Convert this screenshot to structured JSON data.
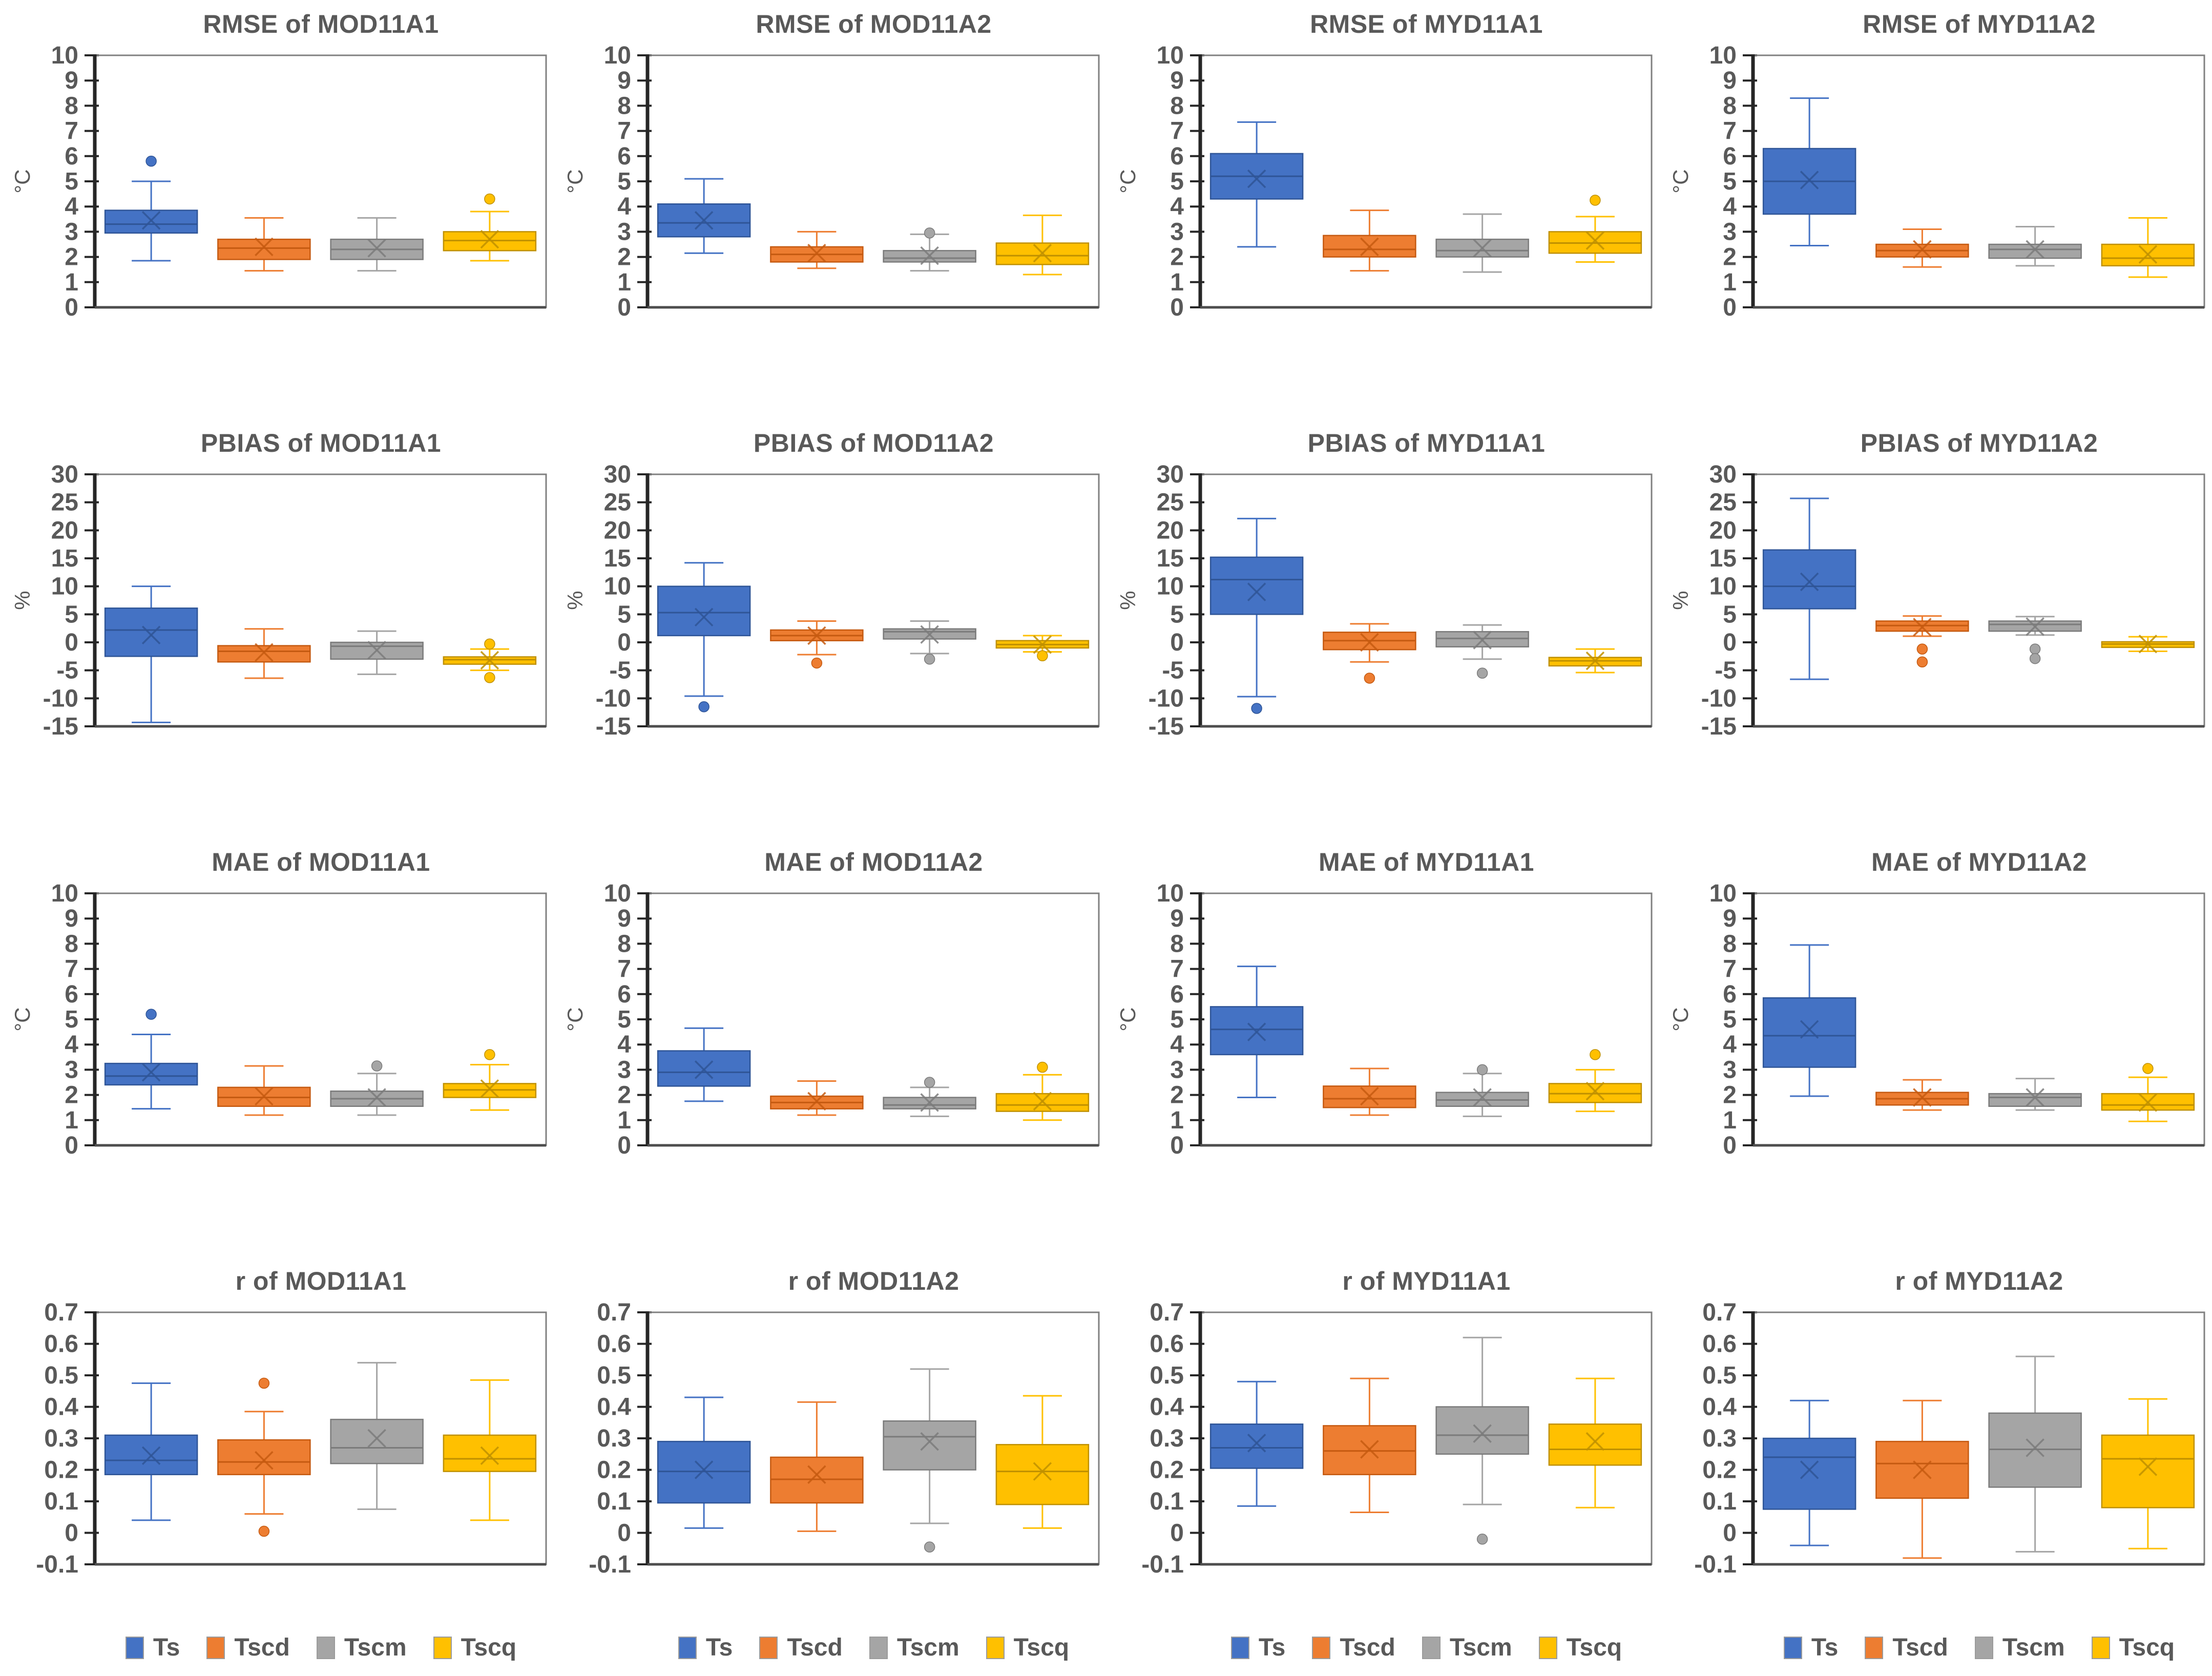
{
  "figure": {
    "rows": [
      "RMSE",
      "PBIAS",
      "MAE",
      "r"
    ],
    "columns": [
      "MOD11A1",
      "MOD11A2",
      "MYD11A1",
      "MYD11A2"
    ]
  },
  "legend": {
    "items": [
      {
        "label": "Ts",
        "color": "#4472C4"
      },
      {
        "label": "Tscd",
        "color": "#ED7D31"
      },
      {
        "label": "Tscm",
        "color": "#A5A5A5"
      },
      {
        "label": "Tscq",
        "color": "#FFC000"
      }
    ]
  },
  "palette": {
    "Ts": {
      "fill": "#4472C4",
      "line": "#2F5597"
    },
    "Tscd": {
      "fill": "#ED7D31",
      "line": "#C55A11"
    },
    "Tscm": {
      "fill": "#A5A5A5",
      "line": "#7B7B7B"
    },
    "Tscq": {
      "fill": "#FFC000",
      "line": "#BF9000"
    },
    "title_color": "#595959",
    "tick_color": "#595959",
    "axis_color": "#262626",
    "frame_color": "#808080"
  },
  "chart_data": [
    {
      "type": "box",
      "title": "RMSE of MOD11A1",
      "ylabel": "°C",
      "ylim": [
        0,
        10
      ],
      "tick_step": 1,
      "grid": false,
      "boxes": [
        {
          "series": "Ts",
          "whisker_low": 1.85,
          "q1": 2.95,
          "median": 3.3,
          "q3": 3.85,
          "whisker_high": 5.0,
          "mean": 3.45,
          "outliers": [
            5.8
          ]
        },
        {
          "series": "Tscd",
          "whisker_low": 1.45,
          "q1": 1.9,
          "median": 2.35,
          "q3": 2.7,
          "whisker_high": 3.55,
          "mean": 2.4,
          "outliers": []
        },
        {
          "series": "Tscm",
          "whisker_low": 1.45,
          "q1": 1.9,
          "median": 2.3,
          "q3": 2.7,
          "whisker_high": 3.55,
          "mean": 2.35,
          "outliers": []
        },
        {
          "series": "Tscq",
          "whisker_low": 1.85,
          "q1": 2.25,
          "median": 2.65,
          "q3": 3.0,
          "whisker_high": 3.8,
          "mean": 2.7,
          "outliers": [
            4.3
          ]
        }
      ]
    },
    {
      "type": "box",
      "title": "RMSE of MOD11A2",
      "ylabel": "°C",
      "ylim": [
        0,
        10
      ],
      "tick_step": 1,
      "grid": false,
      "boxes": [
        {
          "series": "Ts",
          "whisker_low": 2.15,
          "q1": 2.8,
          "median": 3.35,
          "q3": 4.1,
          "whisker_high": 5.1,
          "mean": 3.45,
          "outliers": []
        },
        {
          "series": "Tscd",
          "whisker_low": 1.55,
          "q1": 1.8,
          "median": 2.1,
          "q3": 2.4,
          "whisker_high": 3.0,
          "mean": 2.15,
          "outliers": []
        },
        {
          "series": "Tscm",
          "whisker_low": 1.45,
          "q1": 1.8,
          "median": 1.95,
          "q3": 2.25,
          "whisker_high": 2.9,
          "mean": 2.05,
          "outliers": [
            2.95
          ]
        },
        {
          "series": "Tscq",
          "whisker_low": 1.3,
          "q1": 1.7,
          "median": 2.05,
          "q3": 2.55,
          "whisker_high": 3.65,
          "mean": 2.15,
          "outliers": []
        }
      ]
    },
    {
      "type": "box",
      "title": "RMSE of MYD11A1",
      "ylabel": "°C",
      "ylim": [
        0,
        10
      ],
      "tick_step": 1,
      "grid": false,
      "boxes": [
        {
          "series": "Ts",
          "whisker_low": 2.4,
          "q1": 4.3,
          "median": 5.2,
          "q3": 6.1,
          "whisker_high": 7.35,
          "mean": 5.1,
          "outliers": []
        },
        {
          "series": "Tscd",
          "whisker_low": 1.45,
          "q1": 2.0,
          "median": 2.3,
          "q3": 2.85,
          "whisker_high": 3.85,
          "mean": 2.4,
          "outliers": []
        },
        {
          "series": "Tscm",
          "whisker_low": 1.4,
          "q1": 2.0,
          "median": 2.25,
          "q3": 2.7,
          "whisker_high": 3.7,
          "mean": 2.35,
          "outliers": []
        },
        {
          "series": "Tscq",
          "whisker_low": 1.8,
          "q1": 2.15,
          "median": 2.55,
          "q3": 3.0,
          "whisker_high": 3.6,
          "mean": 2.65,
          "outliers": [
            4.25
          ]
        }
      ]
    },
    {
      "type": "box",
      "title": "RMSE of MYD11A2",
      "ylabel": "°C",
      "ylim": [
        0,
        10
      ],
      "tick_step": 1,
      "grid": false,
      "boxes": [
        {
          "series": "Ts",
          "whisker_low": 2.45,
          "q1": 3.7,
          "median": 5.0,
          "q3": 6.3,
          "whisker_high": 8.3,
          "mean": 5.05,
          "outliers": []
        },
        {
          "series": "Tscd",
          "whisker_low": 1.6,
          "q1": 2.0,
          "median": 2.25,
          "q3": 2.5,
          "whisker_high": 3.1,
          "mean": 2.3,
          "outliers": []
        },
        {
          "series": "Tscm",
          "whisker_low": 1.65,
          "q1": 1.95,
          "median": 2.3,
          "q3": 2.5,
          "whisker_high": 3.2,
          "mean": 2.3,
          "outliers": []
        },
        {
          "series": "Tscq",
          "whisker_low": 1.2,
          "q1": 1.65,
          "median": 1.95,
          "q3": 2.5,
          "whisker_high": 3.55,
          "mean": 2.1,
          "outliers": []
        }
      ]
    },
    {
      "type": "box",
      "title": "PBIAS of MOD11A1",
      "ylabel": "%",
      "ylim": [
        -15,
        30
      ],
      "tick_step": 5,
      "grid": false,
      "boxes": [
        {
          "series": "Ts",
          "whisker_low": -14.3,
          "q1": -2.5,
          "median": 2.2,
          "q3": 6.1,
          "whisker_high": 10.0,
          "mean": 1.3,
          "outliers": []
        },
        {
          "series": "Tscd",
          "whisker_low": -6.4,
          "q1": -3.5,
          "median": -1.6,
          "q3": -0.6,
          "whisker_high": 2.4,
          "mean": -1.8,
          "outliers": []
        },
        {
          "series": "Tscm",
          "whisker_low": -5.7,
          "q1": -3.0,
          "median": -0.7,
          "q3": 0.0,
          "whisker_high": 2.0,
          "mean": -1.4,
          "outliers": []
        },
        {
          "series": "Tscq",
          "whisker_low": -5.0,
          "q1": -3.9,
          "median": -3.1,
          "q3": -2.6,
          "whisker_high": -1.2,
          "mean": -3.2,
          "outliers": [
            -0.3,
            -6.3
          ]
        }
      ]
    },
    {
      "type": "box",
      "title": "PBIAS of MOD11A2",
      "ylabel": "%",
      "ylim": [
        -15,
        30
      ],
      "tick_step": 5,
      "grid": false,
      "boxes": [
        {
          "series": "Ts",
          "whisker_low": -9.6,
          "q1": 1.2,
          "median": 5.3,
          "q3": 10.0,
          "whisker_high": 14.2,
          "mean": 4.5,
          "outliers": [
            -11.5
          ]
        },
        {
          "series": "Tscd",
          "whisker_low": -2.2,
          "q1": 0.3,
          "median": 1.2,
          "q3": 2.2,
          "whisker_high": 3.8,
          "mean": 1.2,
          "outliers": [
            -3.7
          ]
        },
        {
          "series": "Tscm",
          "whisker_low": -2.0,
          "q1": 0.6,
          "median": 1.9,
          "q3": 2.4,
          "whisker_high": 3.8,
          "mean": 1.4,
          "outliers": [
            -3.0
          ]
        },
        {
          "series": "Tscq",
          "whisker_low": -1.7,
          "q1": -1.0,
          "median": -0.4,
          "q3": 0.3,
          "whisker_high": 1.2,
          "mean": -0.4,
          "outliers": [
            -2.4
          ]
        }
      ]
    },
    {
      "type": "box",
      "title": "PBIAS of MYD11A1",
      "ylabel": "%",
      "ylim": [
        -15,
        30
      ],
      "tick_step": 5,
      "grid": false,
      "boxes": [
        {
          "series": "Ts",
          "whisker_low": -9.7,
          "q1": 5.0,
          "median": 11.2,
          "q3": 15.2,
          "whisker_high": 22.1,
          "mean": 9.0,
          "outliers": [
            -11.8
          ]
        },
        {
          "series": "Tscd",
          "whisker_low": -3.5,
          "q1": -1.3,
          "median": 0.3,
          "q3": 1.8,
          "whisker_high": 3.3,
          "mean": 0.0,
          "outliers": [
            -6.4
          ]
        },
        {
          "series": "Tscm",
          "whisker_low": -3.0,
          "q1": -0.8,
          "median": 0.7,
          "q3": 1.9,
          "whisker_high": 3.1,
          "mean": 0.4,
          "outliers": [
            -5.5
          ]
        },
        {
          "series": "Tscq",
          "whisker_low": -5.4,
          "q1": -4.2,
          "median": -3.3,
          "q3": -2.7,
          "whisker_high": -1.2,
          "mean": -3.3,
          "outliers": []
        }
      ]
    },
    {
      "type": "box",
      "title": "PBIAS of MYD11A2",
      "ylabel": "%",
      "ylim": [
        -15,
        30
      ],
      "tick_step": 5,
      "grid": false,
      "boxes": [
        {
          "series": "Ts",
          "whisker_low": -6.6,
          "q1": 6.0,
          "median": 10.0,
          "q3": 16.5,
          "whisker_high": 25.7,
          "mean": 10.8,
          "outliers": []
        },
        {
          "series": "Tscd",
          "whisker_low": 1.1,
          "q1": 2.0,
          "median": 3.0,
          "q3": 3.8,
          "whisker_high": 4.7,
          "mean": 2.7,
          "outliers": [
            -1.2,
            -3.5
          ]
        },
        {
          "series": "Tscm",
          "whisker_low": 1.3,
          "q1": 2.0,
          "median": 3.2,
          "q3": 3.8,
          "whisker_high": 4.6,
          "mean": 2.8,
          "outliers": [
            -1.2,
            -2.9
          ]
        },
        {
          "series": "Tscq",
          "whisker_low": -1.6,
          "q1": -0.9,
          "median": -0.3,
          "q3": 0.1,
          "whisker_high": 1.0,
          "mean": -0.3,
          "outliers": []
        }
      ]
    },
    {
      "type": "box",
      "title": "MAE of MOD11A1",
      "ylabel": "°C",
      "ylim": [
        0,
        10
      ],
      "tick_step": 1,
      "grid": false,
      "boxes": [
        {
          "series": "Ts",
          "whisker_low": 1.45,
          "q1": 2.4,
          "median": 2.75,
          "q3": 3.25,
          "whisker_high": 4.4,
          "mean": 2.9,
          "outliers": [
            5.2
          ]
        },
        {
          "series": "Tscd",
          "whisker_low": 1.2,
          "q1": 1.55,
          "median": 1.9,
          "q3": 2.3,
          "whisker_high": 3.15,
          "mean": 1.95,
          "outliers": []
        },
        {
          "series": "Tscm",
          "whisker_low": 1.2,
          "q1": 1.55,
          "median": 1.85,
          "q3": 2.15,
          "whisker_high": 2.85,
          "mean": 1.9,
          "outliers": [
            3.15
          ]
        },
        {
          "series": "Tscq",
          "whisker_low": 1.4,
          "q1": 1.9,
          "median": 2.2,
          "q3": 2.45,
          "whisker_high": 3.2,
          "mean": 2.25,
          "outliers": [
            3.6
          ]
        }
      ]
    },
    {
      "type": "box",
      "title": "MAE of MOD11A2",
      "ylabel": "°C",
      "ylim": [
        0,
        10
      ],
      "tick_step": 1,
      "grid": false,
      "boxes": [
        {
          "series": "Ts",
          "whisker_low": 1.75,
          "q1": 2.35,
          "median": 2.9,
          "q3": 3.75,
          "whisker_high": 4.65,
          "mean": 3.0,
          "outliers": []
        },
        {
          "series": "Tscd",
          "whisker_low": 1.2,
          "q1": 1.45,
          "median": 1.7,
          "q3": 1.95,
          "whisker_high": 2.55,
          "mean": 1.75,
          "outliers": []
        },
        {
          "series": "Tscm",
          "whisker_low": 1.15,
          "q1": 1.45,
          "median": 1.6,
          "q3": 1.9,
          "whisker_high": 2.3,
          "mean": 1.7,
          "outliers": [
            2.5
          ]
        },
        {
          "series": "Tscq",
          "whisker_low": 1.0,
          "q1": 1.35,
          "median": 1.6,
          "q3": 2.05,
          "whisker_high": 2.8,
          "mean": 1.75,
          "outliers": [
            3.1
          ]
        }
      ]
    },
    {
      "type": "box",
      "title": "MAE of MYD11A1",
      "ylabel": "°C",
      "ylim": [
        0,
        10
      ],
      "tick_step": 1,
      "grid": false,
      "boxes": [
        {
          "series": "Ts",
          "whisker_low": 1.9,
          "q1": 3.6,
          "median": 4.6,
          "q3": 5.5,
          "whisker_high": 7.1,
          "mean": 4.5,
          "outliers": []
        },
        {
          "series": "Tscd",
          "whisker_low": 1.2,
          "q1": 1.5,
          "median": 1.85,
          "q3": 2.35,
          "whisker_high": 3.05,
          "mean": 1.95,
          "outliers": []
        },
        {
          "series": "Tscm",
          "whisker_low": 1.15,
          "q1": 1.55,
          "median": 1.8,
          "q3": 2.1,
          "whisker_high": 2.85,
          "mean": 1.9,
          "outliers": [
            3.0
          ]
        },
        {
          "series": "Tscq",
          "whisker_low": 1.35,
          "q1": 1.7,
          "median": 2.05,
          "q3": 2.45,
          "whisker_high": 3.0,
          "mean": 2.15,
          "outliers": [
            3.6
          ]
        }
      ]
    },
    {
      "type": "box",
      "title": "MAE of MYD11A2",
      "ylabel": "°C",
      "ylim": [
        0,
        10
      ],
      "tick_step": 1,
      "grid": false,
      "boxes": [
        {
          "series": "Ts",
          "whisker_low": 1.95,
          "q1": 3.1,
          "median": 4.35,
          "q3": 5.85,
          "whisker_high": 7.95,
          "mean": 4.6,
          "outliers": []
        },
        {
          "series": "Tscd",
          "whisker_low": 1.4,
          "q1": 1.6,
          "median": 1.85,
          "q3": 2.1,
          "whisker_high": 2.6,
          "mean": 1.9,
          "outliers": []
        },
        {
          "series": "Tscm",
          "whisker_low": 1.4,
          "q1": 1.55,
          "median": 1.9,
          "q3": 2.05,
          "whisker_high": 2.65,
          "mean": 1.9,
          "outliers": []
        },
        {
          "series": "Tscq",
          "whisker_low": 0.95,
          "q1": 1.4,
          "median": 1.6,
          "q3": 2.05,
          "whisker_high": 2.7,
          "mean": 1.7,
          "outliers": [
            3.05
          ]
        }
      ]
    },
    {
      "type": "box",
      "title": "r of MOD11A1",
      "ylabel": "",
      "ylim": [
        -0.1,
        0.7
      ],
      "tick_step": 0.1,
      "grid": false,
      "boxes": [
        {
          "series": "Ts",
          "whisker_low": 0.04,
          "q1": 0.185,
          "median": 0.23,
          "q3": 0.31,
          "whisker_high": 0.475,
          "mean": 0.245,
          "outliers": []
        },
        {
          "series": "Tscd",
          "whisker_low": 0.06,
          "q1": 0.185,
          "median": 0.225,
          "q3": 0.295,
          "whisker_high": 0.385,
          "mean": 0.23,
          "outliers": [
            0.475,
            0.005
          ]
        },
        {
          "series": "Tscm",
          "whisker_low": 0.075,
          "q1": 0.22,
          "median": 0.27,
          "q3": 0.36,
          "whisker_high": 0.54,
          "mean": 0.3,
          "outliers": []
        },
        {
          "series": "Tscq",
          "whisker_low": 0.04,
          "q1": 0.195,
          "median": 0.235,
          "q3": 0.31,
          "whisker_high": 0.485,
          "mean": 0.245,
          "outliers": []
        }
      ]
    },
    {
      "type": "box",
      "title": "r of MOD11A2",
      "ylabel": "",
      "ylim": [
        -0.1,
        0.7
      ],
      "tick_step": 0.1,
      "grid": false,
      "boxes": [
        {
          "series": "Ts",
          "whisker_low": 0.015,
          "q1": 0.095,
          "median": 0.195,
          "q3": 0.29,
          "whisker_high": 0.43,
          "mean": 0.2,
          "outliers": []
        },
        {
          "series": "Tscd",
          "whisker_low": 0.005,
          "q1": 0.095,
          "median": 0.17,
          "q3": 0.24,
          "whisker_high": 0.415,
          "mean": 0.185,
          "outliers": []
        },
        {
          "series": "Tscm",
          "whisker_low": 0.03,
          "q1": 0.2,
          "median": 0.305,
          "q3": 0.355,
          "whisker_high": 0.52,
          "mean": 0.29,
          "outliers": [
            -0.045
          ]
        },
        {
          "series": "Tscq",
          "whisker_low": 0.015,
          "q1": 0.09,
          "median": 0.195,
          "q3": 0.28,
          "whisker_high": 0.435,
          "mean": 0.195,
          "outliers": []
        }
      ]
    },
    {
      "type": "box",
      "title": "r of MYD11A1",
      "ylabel": "",
      "ylim": [
        -0.1,
        0.7
      ],
      "tick_step": 0.1,
      "grid": false,
      "boxes": [
        {
          "series": "Ts",
          "whisker_low": 0.085,
          "q1": 0.205,
          "median": 0.27,
          "q3": 0.345,
          "whisker_high": 0.48,
          "mean": 0.285,
          "outliers": []
        },
        {
          "series": "Tscd",
          "whisker_low": 0.065,
          "q1": 0.185,
          "median": 0.26,
          "q3": 0.34,
          "whisker_high": 0.49,
          "mean": 0.265,
          "outliers": []
        },
        {
          "series": "Tscm",
          "whisker_low": 0.09,
          "q1": 0.25,
          "median": 0.31,
          "q3": 0.4,
          "whisker_high": 0.62,
          "mean": 0.315,
          "outliers": [
            -0.02
          ]
        },
        {
          "series": "Tscq",
          "whisker_low": 0.08,
          "q1": 0.215,
          "median": 0.265,
          "q3": 0.345,
          "whisker_high": 0.49,
          "mean": 0.29,
          "outliers": []
        }
      ]
    },
    {
      "type": "box",
      "title": "r of MYD11A2",
      "ylabel": "",
      "ylim": [
        -0.1,
        0.7
      ],
      "tick_step": 0.1,
      "grid": false,
      "boxes": [
        {
          "series": "Ts",
          "whisker_low": -0.04,
          "q1": 0.075,
          "median": 0.24,
          "q3": 0.3,
          "whisker_high": 0.42,
          "mean": 0.2,
          "outliers": []
        },
        {
          "series": "Tscd",
          "whisker_low": -0.08,
          "q1": 0.11,
          "median": 0.22,
          "q3": 0.29,
          "whisker_high": 0.42,
          "mean": 0.2,
          "outliers": []
        },
        {
          "series": "Tscm",
          "whisker_low": -0.06,
          "q1": 0.145,
          "median": 0.265,
          "q3": 0.38,
          "whisker_high": 0.56,
          "mean": 0.27,
          "outliers": []
        },
        {
          "series": "Tscq",
          "whisker_low": -0.05,
          "q1": 0.08,
          "median": 0.235,
          "q3": 0.31,
          "whisker_high": 0.425,
          "mean": 0.21,
          "outliers": []
        }
      ]
    }
  ]
}
